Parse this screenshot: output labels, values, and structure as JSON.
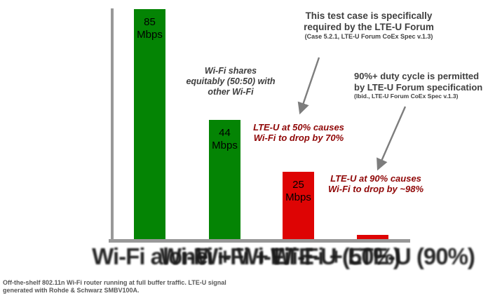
{
  "chart_data": {
    "type": "bar",
    "title": "",
    "xlabel": "",
    "ylabel": "",
    "grid": false,
    "legend": null,
    "ylim": [
      0,
      88
    ],
    "categories": [
      "Wi-Fi alone",
      "Wi-Fi + Wi-Fi",
      "Wi-Fi + LTE-U (50%)",
      "Wi-Fi + LTE-U (90%)"
    ],
    "values": [
      85,
      44,
      25,
      1.5
    ],
    "bar_labels": [
      "85 Mbps",
      "44 Mbps",
      "25 Mbps",
      ""
    ],
    "bar_colors": [
      "#048404",
      "#048404",
      "#de0404",
      "#de0404"
    ]
  },
  "annotations": {
    "share": {
      "line1": "Wi-Fi shares",
      "line2": "equitably (50:50) with",
      "line3": "other Wi-Fi"
    },
    "test_case": {
      "line1": "This test case is specifically",
      "line2": "required by the LTE-U Forum",
      "line3": "(Case 5.2.1, LTE-U Forum CoEx Spec v.1.3)"
    },
    "duty_cycle": {
      "line1": "90%+ duty cycle is permitted",
      "line2": "by LTE-U Forum specification",
      "line3": "(Ibid., LTE-U Forum CoEx Spec v.1.3)"
    },
    "drop50": {
      "line1": "LTE-U at 50% causes",
      "line2": "Wi-Fi to drop by 70%"
    },
    "drop90": {
      "line1": "LTE-U at 90% causes",
      "line2": "Wi-Fi to drop by ~98%"
    }
  },
  "caption": {
    "line1": "Off-the-shelf 802.11n Wi-Fi router running at full buffer traffic. LTE-U signal",
    "line2": "generated with Rohde & Schwarz SMBV100A."
  },
  "colors": {
    "bar_green": "#048404",
    "bar_red": "#de0404",
    "red_text": "#8f0606",
    "gray_text": "#3f3f3f",
    "axis_gray": "#999999",
    "arrow_gray": "#7d7d7d",
    "caption_gray": "#575757"
  }
}
